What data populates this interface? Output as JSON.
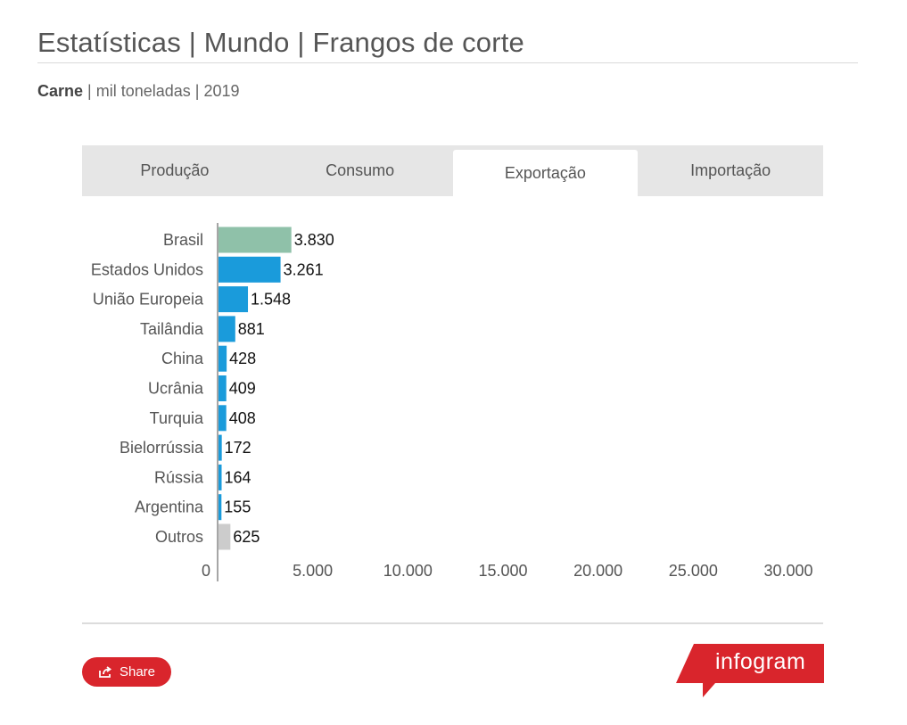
{
  "header": {
    "title": "Estatísticas | Mundo | Frangos de corte",
    "subtitle_bold": "Carne",
    "subtitle_rest": " | mil toneladas | 2019"
  },
  "tabs": [
    {
      "label": "Produção",
      "active": false
    },
    {
      "label": "Consumo",
      "active": false
    },
    {
      "label": "Exportação",
      "active": true
    },
    {
      "label": "Importação",
      "active": false
    }
  ],
  "chart_data": {
    "type": "bar",
    "orientation": "horizontal",
    "categories": [
      "Brasil",
      "Estados Unidos",
      "União Europeia",
      "Tailândia",
      "China",
      "Ucrânia",
      "Turquia",
      "Bielorrússia",
      "Rússia",
      "Argentina",
      "Outros"
    ],
    "values": [
      3830,
      3261,
      1548,
      881,
      428,
      409,
      408,
      172,
      164,
      155,
      625
    ],
    "value_labels": [
      "3.830",
      "3.261",
      "1.548",
      "881",
      "428",
      "409",
      "408",
      "172",
      "164",
      "155",
      "625"
    ],
    "bar_colors": [
      "#8fc1a9",
      "#1a9bdb",
      "#1a9bdb",
      "#1a9bdb",
      "#1a9bdb",
      "#1a9bdb",
      "#1a9bdb",
      "#1a9bdb",
      "#1a9bdb",
      "#1a9bdb",
      "#cccccc"
    ],
    "xlim": [
      0,
      30000
    ],
    "xticks": [
      0,
      5000,
      10000,
      15000,
      20000,
      25000,
      30000
    ],
    "xtick_labels": [
      "0",
      "5.000",
      "10.000",
      "15.000",
      "20.000",
      "25.000",
      "30.000"
    ],
    "grid": false,
    "legend": "none"
  },
  "footer": {
    "share_label": "Share",
    "logo_text": "infogram",
    "brand_color": "#d9252c"
  }
}
